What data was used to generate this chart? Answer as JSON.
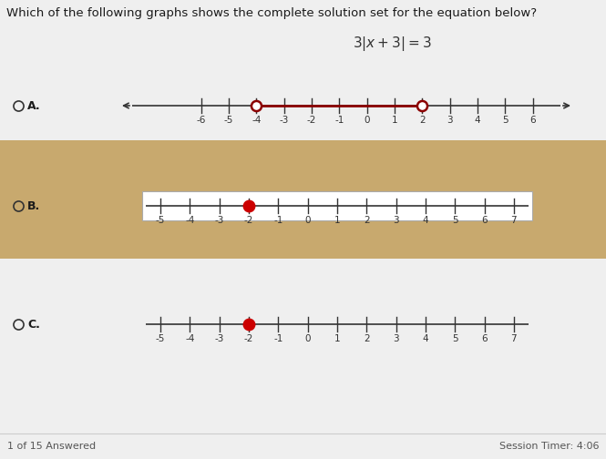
{
  "title_question": "Which of the following graphs shows the complete solution set for the equation below?",
  "equation": "3|x + 3| = 3",
  "bg_color": "#efefef",
  "tan_color": "#c8a96e",
  "white_box_color": "#ffffff",
  "A_range": [
    -8.5,
    7.0
  ],
  "A_ticks": [
    -6,
    -5,
    -4,
    -3,
    -2,
    -1,
    0,
    1,
    2,
    3,
    4,
    5,
    6
  ],
  "A_open_circles": [
    -4,
    2
  ],
  "A_segment_color": "#8b0000",
  "A_line_color": "#333333",
  "B_range": [
    -5.5,
    7.5
  ],
  "B_ticks": [
    -5,
    -4,
    -3,
    -2,
    -1,
    0,
    1,
    2,
    3,
    4,
    5,
    6,
    7
  ],
  "B_dot": -2,
  "B_dot_color": "#cc0000",
  "B_line_color": "#333333",
  "C_range": [
    -5.5,
    7.5
  ],
  "C_ticks": [
    -5,
    -4,
    -3,
    -2,
    -1,
    0,
    1,
    2,
    3,
    4,
    5,
    6,
    7
  ],
  "C_dot": -2,
  "C_dot_color": "#cc0000",
  "C_line_color": "#333333",
  "radio_color": "#333333",
  "footer_left": "1 of 15 Answered",
  "footer_right": "Session Timer: 4:06"
}
